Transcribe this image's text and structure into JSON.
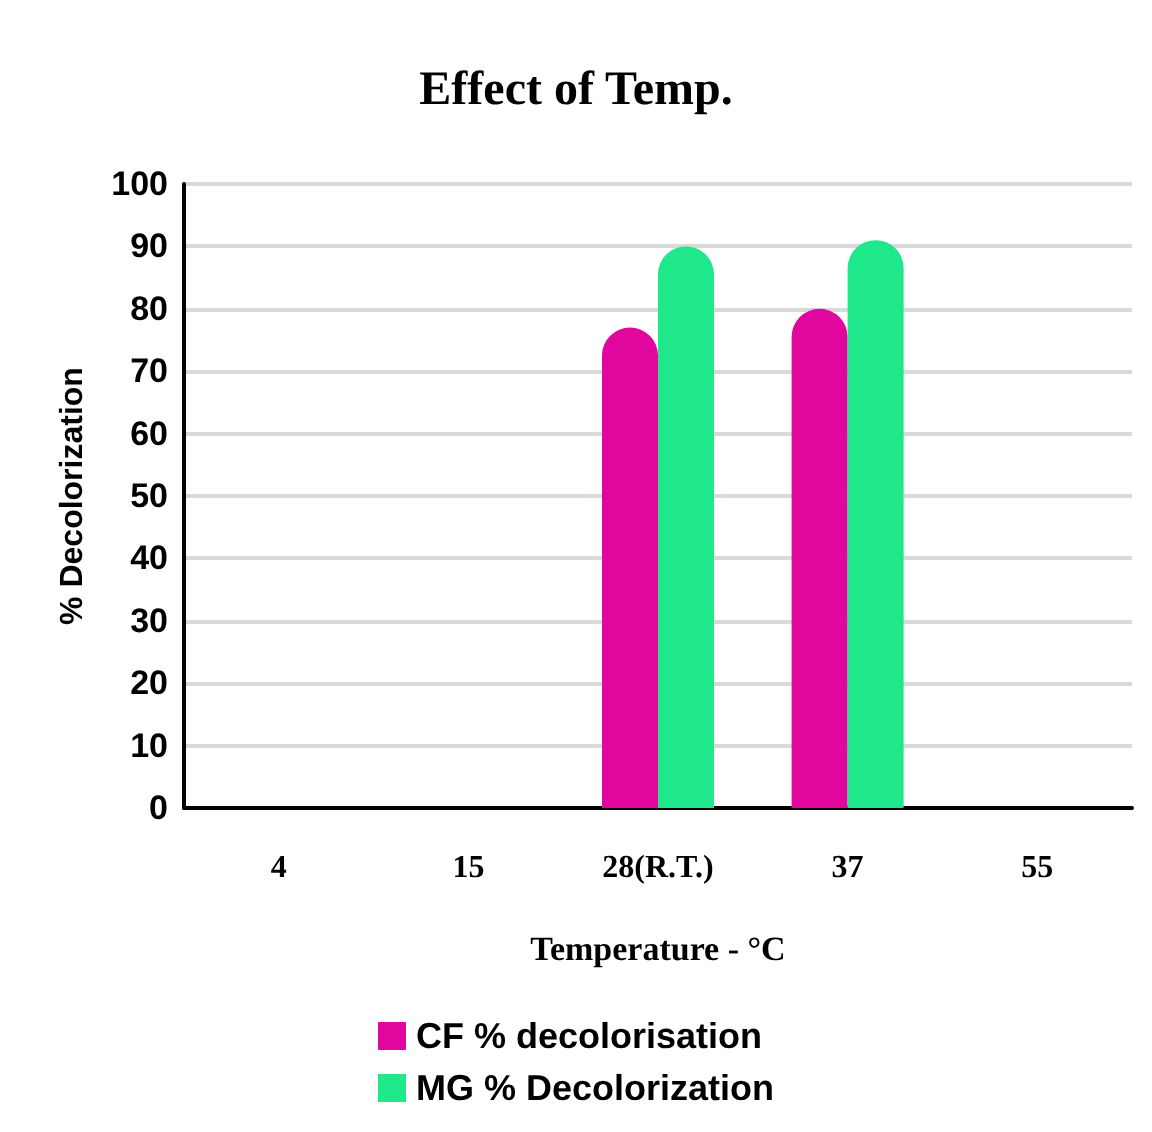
{
  "chart_data": {
    "type": "bar",
    "title": "Effect of Temp.",
    "xlabel": "Temperature - °C",
    "ylabel": "% Decolorization",
    "categories": [
      "4",
      "15",
      "28(R.T.)",
      "37",
      "55"
    ],
    "series": [
      {
        "name": "CF % decolorisation",
        "color": "#e0069e",
        "values": [
          0,
          0,
          77,
          80,
          0
        ]
      },
      {
        "name": "MG % Decolorization",
        "color": "#1ee88a",
        "values": [
          0,
          0,
          90,
          91,
          0
        ]
      }
    ],
    "ylim": [
      0,
      100
    ],
    "yticks": [
      0,
      10,
      20,
      30,
      40,
      50,
      60,
      70,
      80,
      90,
      100
    ],
    "grid": "y",
    "legend": "bottom"
  }
}
